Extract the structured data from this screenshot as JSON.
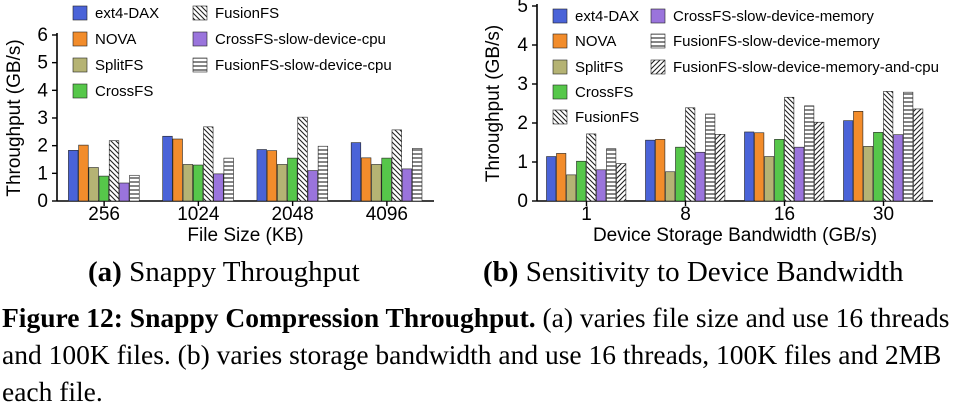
{
  "chart_data": [
    {
      "type": "bar",
      "categories": [
        "256",
        "1024",
        "2048",
        "4096"
      ],
      "xlabel": "File Size (KB)",
      "ylabel": "Throughput (GB/s)",
      "ylim": [
        0,
        6
      ],
      "yticks": [
        0,
        1,
        2,
        3,
        4,
        5,
        6
      ],
      "legend_position": "top-left",
      "series": [
        {
          "name": "ext4-DAX",
          "values": [
            1.83,
            2.34,
            1.86,
            2.11
          ]
        },
        {
          "name": "NOVA",
          "values": [
            2.02,
            2.24,
            1.82,
            1.56
          ]
        },
        {
          "name": "SplitFS",
          "values": [
            1.21,
            1.32,
            1.32,
            1.32
          ]
        },
        {
          "name": "CrossFS",
          "values": [
            0.9,
            1.3,
            1.55,
            1.55
          ]
        },
        {
          "name": "FusionFS",
          "values": [
            2.18,
            2.68,
            3.03,
            2.57
          ]
        },
        {
          "name": "CrossFS-slow-device-cpu",
          "values": [
            0.65,
            0.98,
            1.1,
            1.16
          ]
        },
        {
          "name": "FusionFS-slow-device-cpu",
          "values": [
            0.93,
            1.55,
            1.98,
            1.9
          ]
        }
      ]
    },
    {
      "type": "bar",
      "categories": [
        "1",
        "8",
        "16",
        "30"
      ],
      "xlabel": "Device Storage Bandwidth (GB/s)",
      "ylabel": "Throughput (GB/s)",
      "ylim": [
        0,
        5
      ],
      "yticks": [
        0,
        1,
        2,
        3,
        4,
        5
      ],
      "legend_position": "top-left",
      "series": [
        {
          "name": "ext4-DAX",
          "values": [
            1.14,
            1.56,
            1.77,
            2.06
          ]
        },
        {
          "name": "NOVA",
          "values": [
            1.22,
            1.58,
            1.75,
            2.3
          ]
        },
        {
          "name": "SplitFS",
          "values": [
            0.67,
            0.75,
            1.14,
            1.4
          ]
        },
        {
          "name": "CrossFS",
          "values": [
            1.02,
            1.38,
            1.58,
            1.76
          ]
        },
        {
          "name": "FusionFS",
          "values": [
            1.72,
            2.39,
            2.66,
            2.81
          ]
        },
        {
          "name": "CrossFS-slow-device-memory",
          "values": [
            0.8,
            1.25,
            1.38,
            1.7
          ]
        },
        {
          "name": "FusionFS-slow-device-memory",
          "values": [
            1.34,
            2.23,
            2.44,
            2.79
          ]
        },
        {
          "name": "FusionFS-slow-device-memory-and-cpu",
          "values": [
            0.96,
            1.71,
            2.02,
            2.36
          ]
        }
      ]
    }
  ],
  "styles": {
    "ext4-DAX": {
      "fill": "#4a63d8",
      "pattern": "none"
    },
    "NOVA": {
      "fill": "#f28c2b",
      "pattern": "none"
    },
    "SplitFS": {
      "fill": "#b5b374",
      "pattern": "none"
    },
    "CrossFS": {
      "fill": "#56c74a",
      "pattern": "none"
    },
    "FusionFS": {
      "fill": "#ffffff",
      "pattern": "backdiag"
    },
    "CrossFS-slow-device-cpu": {
      "fill": "#9a74dc",
      "pattern": "none"
    },
    "CrossFS-slow-device-memory": {
      "fill": "#9a74dc",
      "pattern": "none"
    },
    "FusionFS-slow-device-cpu": {
      "fill": "#ffffff",
      "pattern": "horizontal"
    },
    "FusionFS-slow-device-memory": {
      "fill": "#ffffff",
      "pattern": "horizontal"
    },
    "FusionFS-slow-device-memory-and-cpu": {
      "fill": "#ffffff",
      "pattern": "fwddiag"
    }
  },
  "subcaptions": {
    "a_letter": "(a)",
    "a_text": " Snappy Throughput",
    "b_letter": "(b)",
    "b_text": " Sensitivity to Device Bandwidth"
  },
  "caption": {
    "label": "Figure 12: Snappy Compression Throughput.",
    "text": " (a) varies file size and use 16 threads and 100K files. (b) varies storage bandwidth and use 16 threads, 100K files and 2MB each file."
  }
}
